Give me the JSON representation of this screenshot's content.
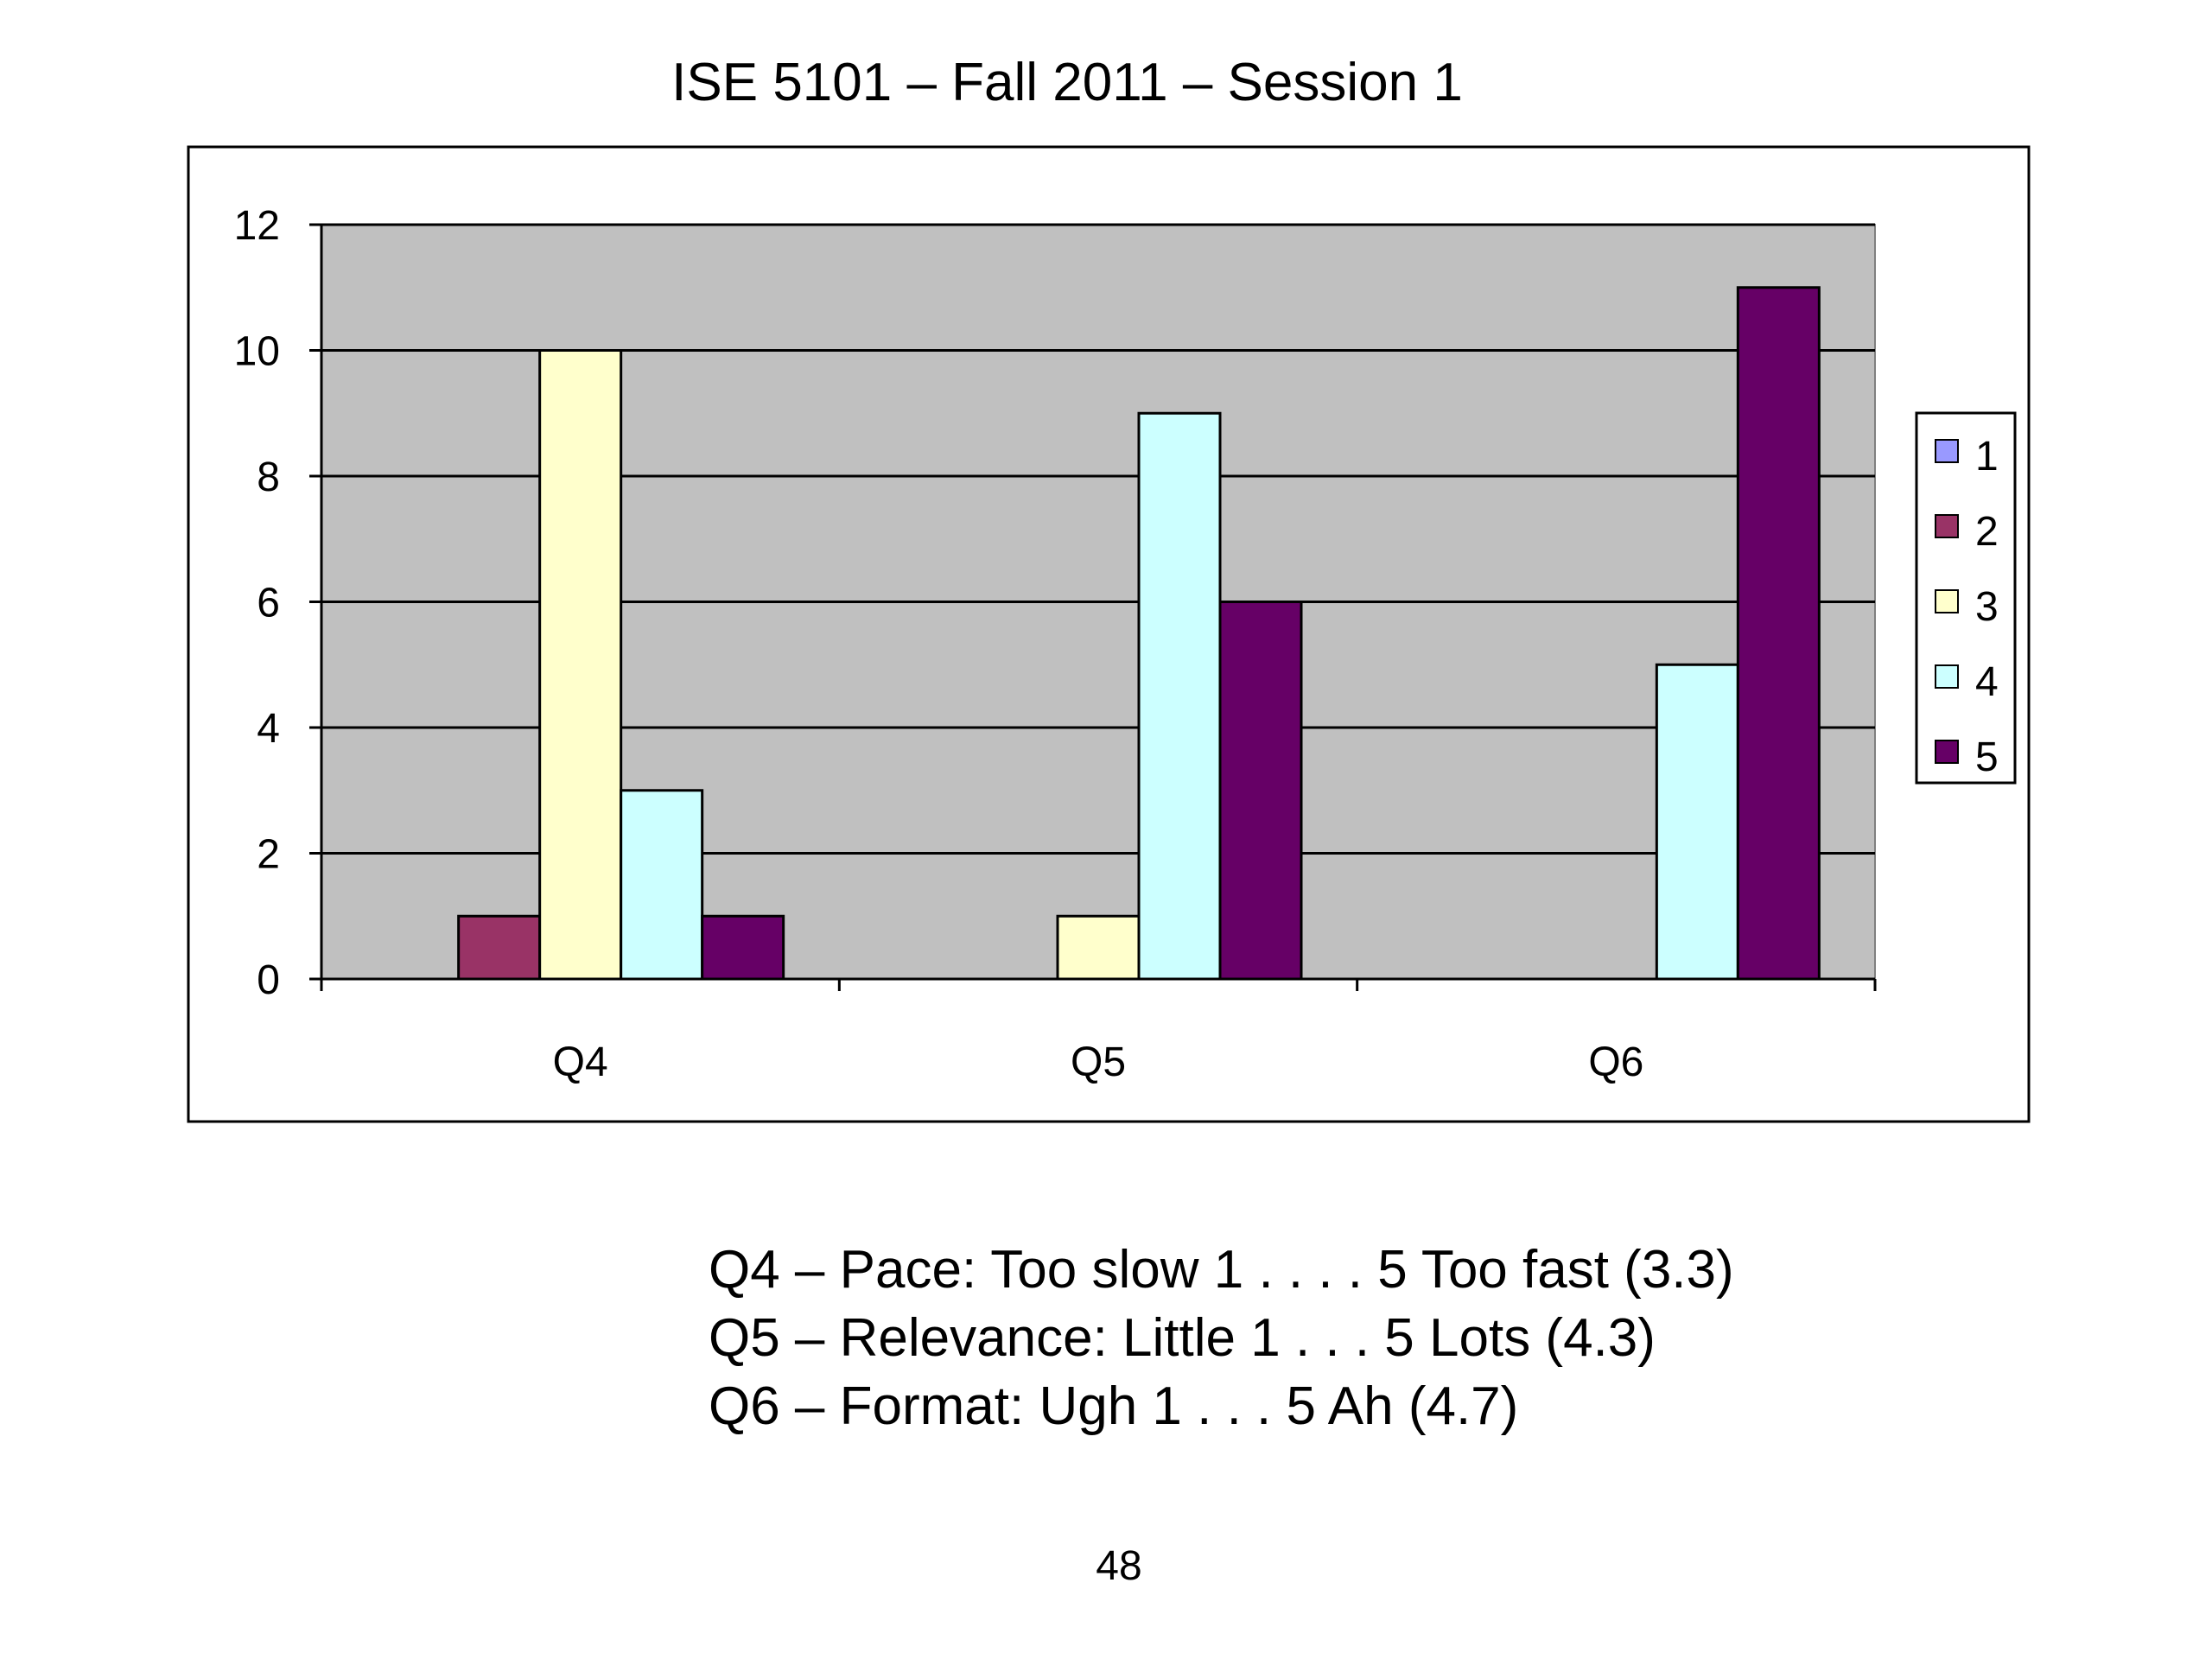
{
  "slide": {
    "title": "ISE 5101 – Fall 2011 – Session 1",
    "notes": [
      "Q4 – Pace: Too slow 1 . . . . 5 Too fast (3.3)",
      "Q5 – Relevance: Little 1 . . . 5 Lots (4.3)",
      "Q6 – Format: Ugh 1 . . . 5 Ah (4.7)"
    ],
    "page_number": "48"
  },
  "chart_data": {
    "type": "bar",
    "title": "",
    "xlabel": "",
    "ylabel": "",
    "categories": [
      "Q4",
      "Q5",
      "Q6"
    ],
    "ylim": [
      0,
      12
    ],
    "yticks": [
      0,
      2,
      4,
      6,
      8,
      10,
      12
    ],
    "grid": true,
    "legend": "right",
    "plot_background": "#c0c0c0",
    "series": [
      {
        "name": "1",
        "color": "#9999ff",
        "values": [
          0,
          0,
          0
        ]
      },
      {
        "name": "2",
        "color": "#993366",
        "values": [
          1,
          0,
          0
        ]
      },
      {
        "name": "3",
        "color": "#ffffcc",
        "values": [
          10,
          1,
          0
        ]
      },
      {
        "name": "4",
        "color": "#ccffff",
        "values": [
          3,
          9,
          5
        ]
      },
      {
        "name": "5",
        "color": "#660066",
        "values": [
          1,
          6,
          11
        ]
      }
    ]
  }
}
